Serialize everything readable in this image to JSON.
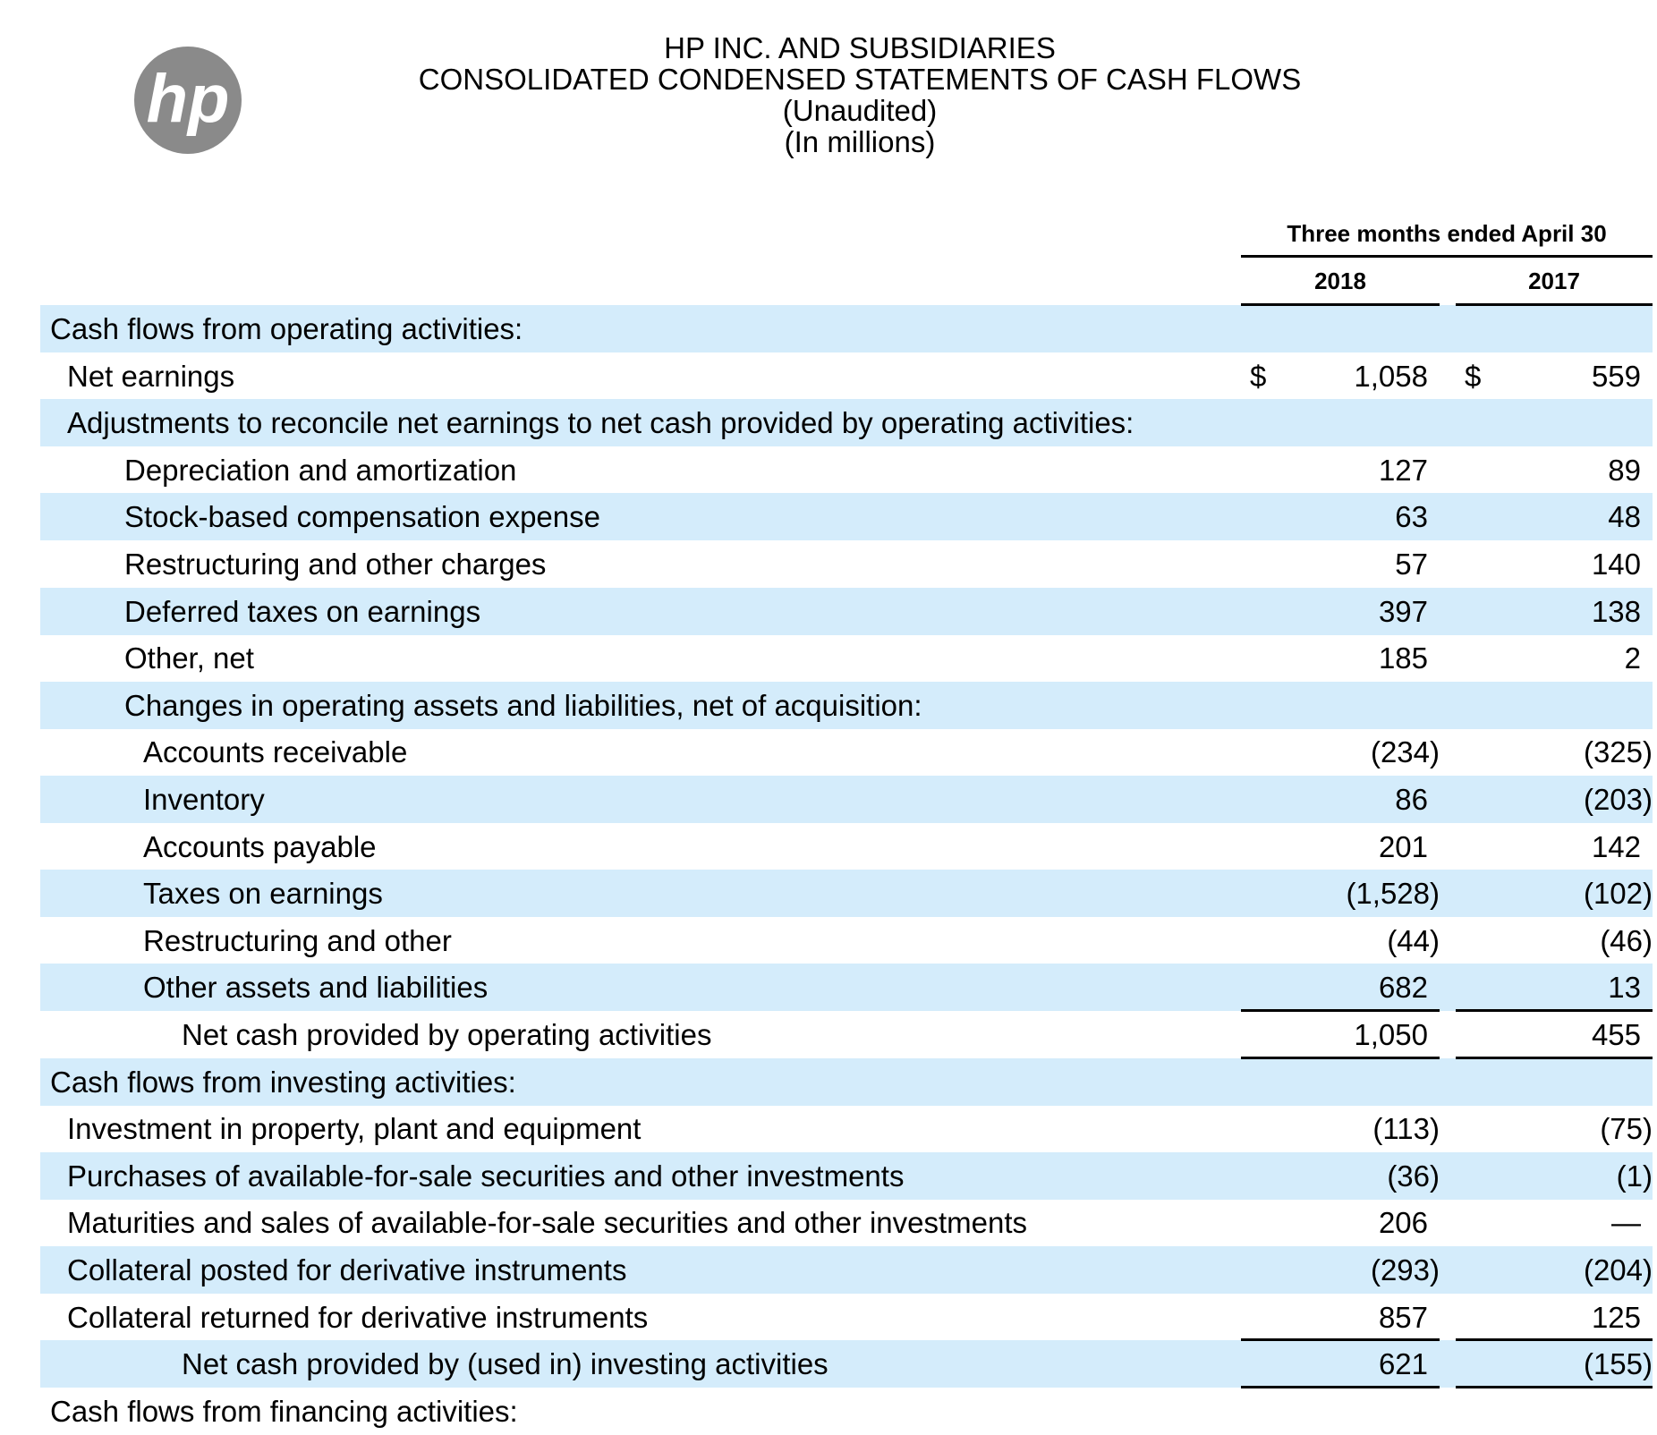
{
  "logo": "hp",
  "header": {
    "title": "HP INC. AND SUBSIDIARIES",
    "subtitle": "CONSOLIDATED CONDENSED STATEMENTS OF CASH FLOWS",
    "note1": "(Unaudited)",
    "note2": "(In millions)"
  },
  "table": {
    "period": "Three months ended April 30",
    "columns": [
      "2018",
      "2017"
    ],
    "currency": "$",
    "rows": [
      {
        "label": "Cash flows from operating activities:",
        "level": 0
      },
      {
        "label": "Net earnings",
        "level": 1,
        "currency_shown": true,
        "values": [
          "1,058",
          "559"
        ]
      },
      {
        "label": "Adjustments to reconcile net earnings to net cash provided by operating activities:",
        "level": 1
      },
      {
        "label": "Depreciation and amortization",
        "level": 2,
        "values": [
          "127",
          "89"
        ]
      },
      {
        "label": "Stock-based compensation expense",
        "level": 2,
        "values": [
          "63",
          "48"
        ]
      },
      {
        "label": "Restructuring and other charges",
        "level": 2,
        "values": [
          "57",
          "140"
        ]
      },
      {
        "label": "Deferred taxes on earnings",
        "level": 2,
        "values": [
          "397",
          "138"
        ]
      },
      {
        "label": "Other, net",
        "level": 2,
        "values": [
          "185",
          "2"
        ]
      },
      {
        "label": "Changes in operating assets and liabilities, net of acquisition:",
        "level": 2
      },
      {
        "label": "Accounts receivable",
        "level": 3,
        "values": [
          "(234)",
          "(325)"
        ]
      },
      {
        "label": "Inventory",
        "level": 3,
        "values": [
          "86",
          "(203)"
        ]
      },
      {
        "label": "Accounts payable",
        "level": 3,
        "values": [
          "201",
          "142"
        ]
      },
      {
        "label": "Taxes on earnings",
        "level": 3,
        "values": [
          "(1,528)",
          "(102)"
        ]
      },
      {
        "label": "Restructuring and other",
        "level": 3,
        "values": [
          "(44)",
          "(46)"
        ]
      },
      {
        "label": "Other assets and liabilities",
        "level": 3,
        "values": [
          "682",
          "13"
        ]
      },
      {
        "label": "Net cash provided by operating activities",
        "level": 4,
        "total": true,
        "values": [
          "1,050",
          "455"
        ]
      },
      {
        "label": "Cash flows from investing activities:",
        "level": 0
      },
      {
        "label": "Investment in property, plant and equipment",
        "level": 1,
        "values": [
          "(113)",
          "(75)"
        ]
      },
      {
        "label": "Purchases of available-for-sale securities and other investments",
        "level": 1,
        "values": [
          "(36)",
          "(1)"
        ]
      },
      {
        "label": "Maturities and sales of available-for-sale securities and other investments",
        "level": 1,
        "values": [
          "206",
          "—"
        ]
      },
      {
        "label": "Collateral posted for derivative instruments",
        "level": 1,
        "values": [
          "(293)",
          "(204)"
        ]
      },
      {
        "label": "Collateral returned for derivative instruments",
        "level": 1,
        "values": [
          "857",
          "125"
        ]
      },
      {
        "label": "Net cash provided by (used in) investing activities",
        "level": 4,
        "total": true,
        "values": [
          "621",
          "(155)"
        ]
      },
      {
        "label": "Cash flows from financing activities:",
        "level": 0
      }
    ]
  }
}
